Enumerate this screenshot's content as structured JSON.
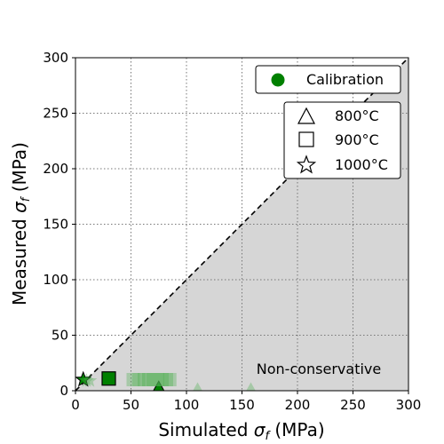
{
  "chart_data": {
    "type": "scatter",
    "title": "",
    "xlabel_main": "Simulated ",
    "xlabel_sym": "σ",
    "xlabel_sub": "f",
    "xlabel_unit": " (MPa)",
    "ylabel_main": "Measured ",
    "ylabel_sym": "σ",
    "ylabel_sub": "f",
    "ylabel_unit": " (MPa)",
    "xlim": [
      0,
      300
    ],
    "ylim": [
      0,
      300
    ],
    "xticks": [
      0,
      50,
      100,
      150,
      200,
      250,
      300
    ],
    "yticks": [
      0,
      50,
      100,
      150,
      200,
      250,
      300
    ],
    "grid": true,
    "grid_style": "dotted",
    "legend_primary": {
      "placement": "top-right",
      "entries": [
        {
          "label": "Calibration",
          "marker": "circle",
          "color": "#008000"
        }
      ]
    },
    "legend_secondary": {
      "placement": "upper-right",
      "entries": [
        {
          "label": "800°C",
          "marker": "triangle"
        },
        {
          "label": "900°C",
          "marker": "square"
        },
        {
          "label": "1000°C",
          "marker": "star"
        }
      ]
    },
    "annotation": "Non-conservative",
    "shaded_region": "below-diagonal",
    "shade_color": "#d6d6d6",
    "diagonal": {
      "from": [
        0,
        0
      ],
      "to": [
        300,
        300
      ],
      "style": "dashed"
    },
    "colors": {
      "calibration": "#008000",
      "faded": "#4caf50"
    },
    "series": [
      {
        "marker": "triangle",
        "role": "calibration",
        "points": [
          [
            75,
            3
          ]
        ]
      },
      {
        "marker": "square",
        "role": "calibration",
        "points": [
          [
            30,
            11
          ]
        ]
      },
      {
        "marker": "star",
        "role": "calibration",
        "points": [
          [
            7,
            10
          ]
        ]
      },
      {
        "marker": "triangle",
        "role": "faded",
        "points": [
          [
            110,
            2
          ],
          [
            158,
            2
          ]
        ]
      },
      {
        "marker": "square",
        "role": "faded",
        "points": [
          [
            52,
            10
          ],
          [
            57,
            10
          ],
          [
            62,
            10
          ],
          [
            66,
            10
          ],
          [
            70,
            10
          ],
          [
            74,
            10
          ],
          [
            78,
            10
          ],
          [
            82,
            10
          ],
          [
            85,
            10
          ]
        ]
      },
      {
        "marker": "star",
        "role": "faded",
        "points": [
          [
            10,
            9
          ],
          [
            13,
            9
          ]
        ]
      }
    ]
  }
}
